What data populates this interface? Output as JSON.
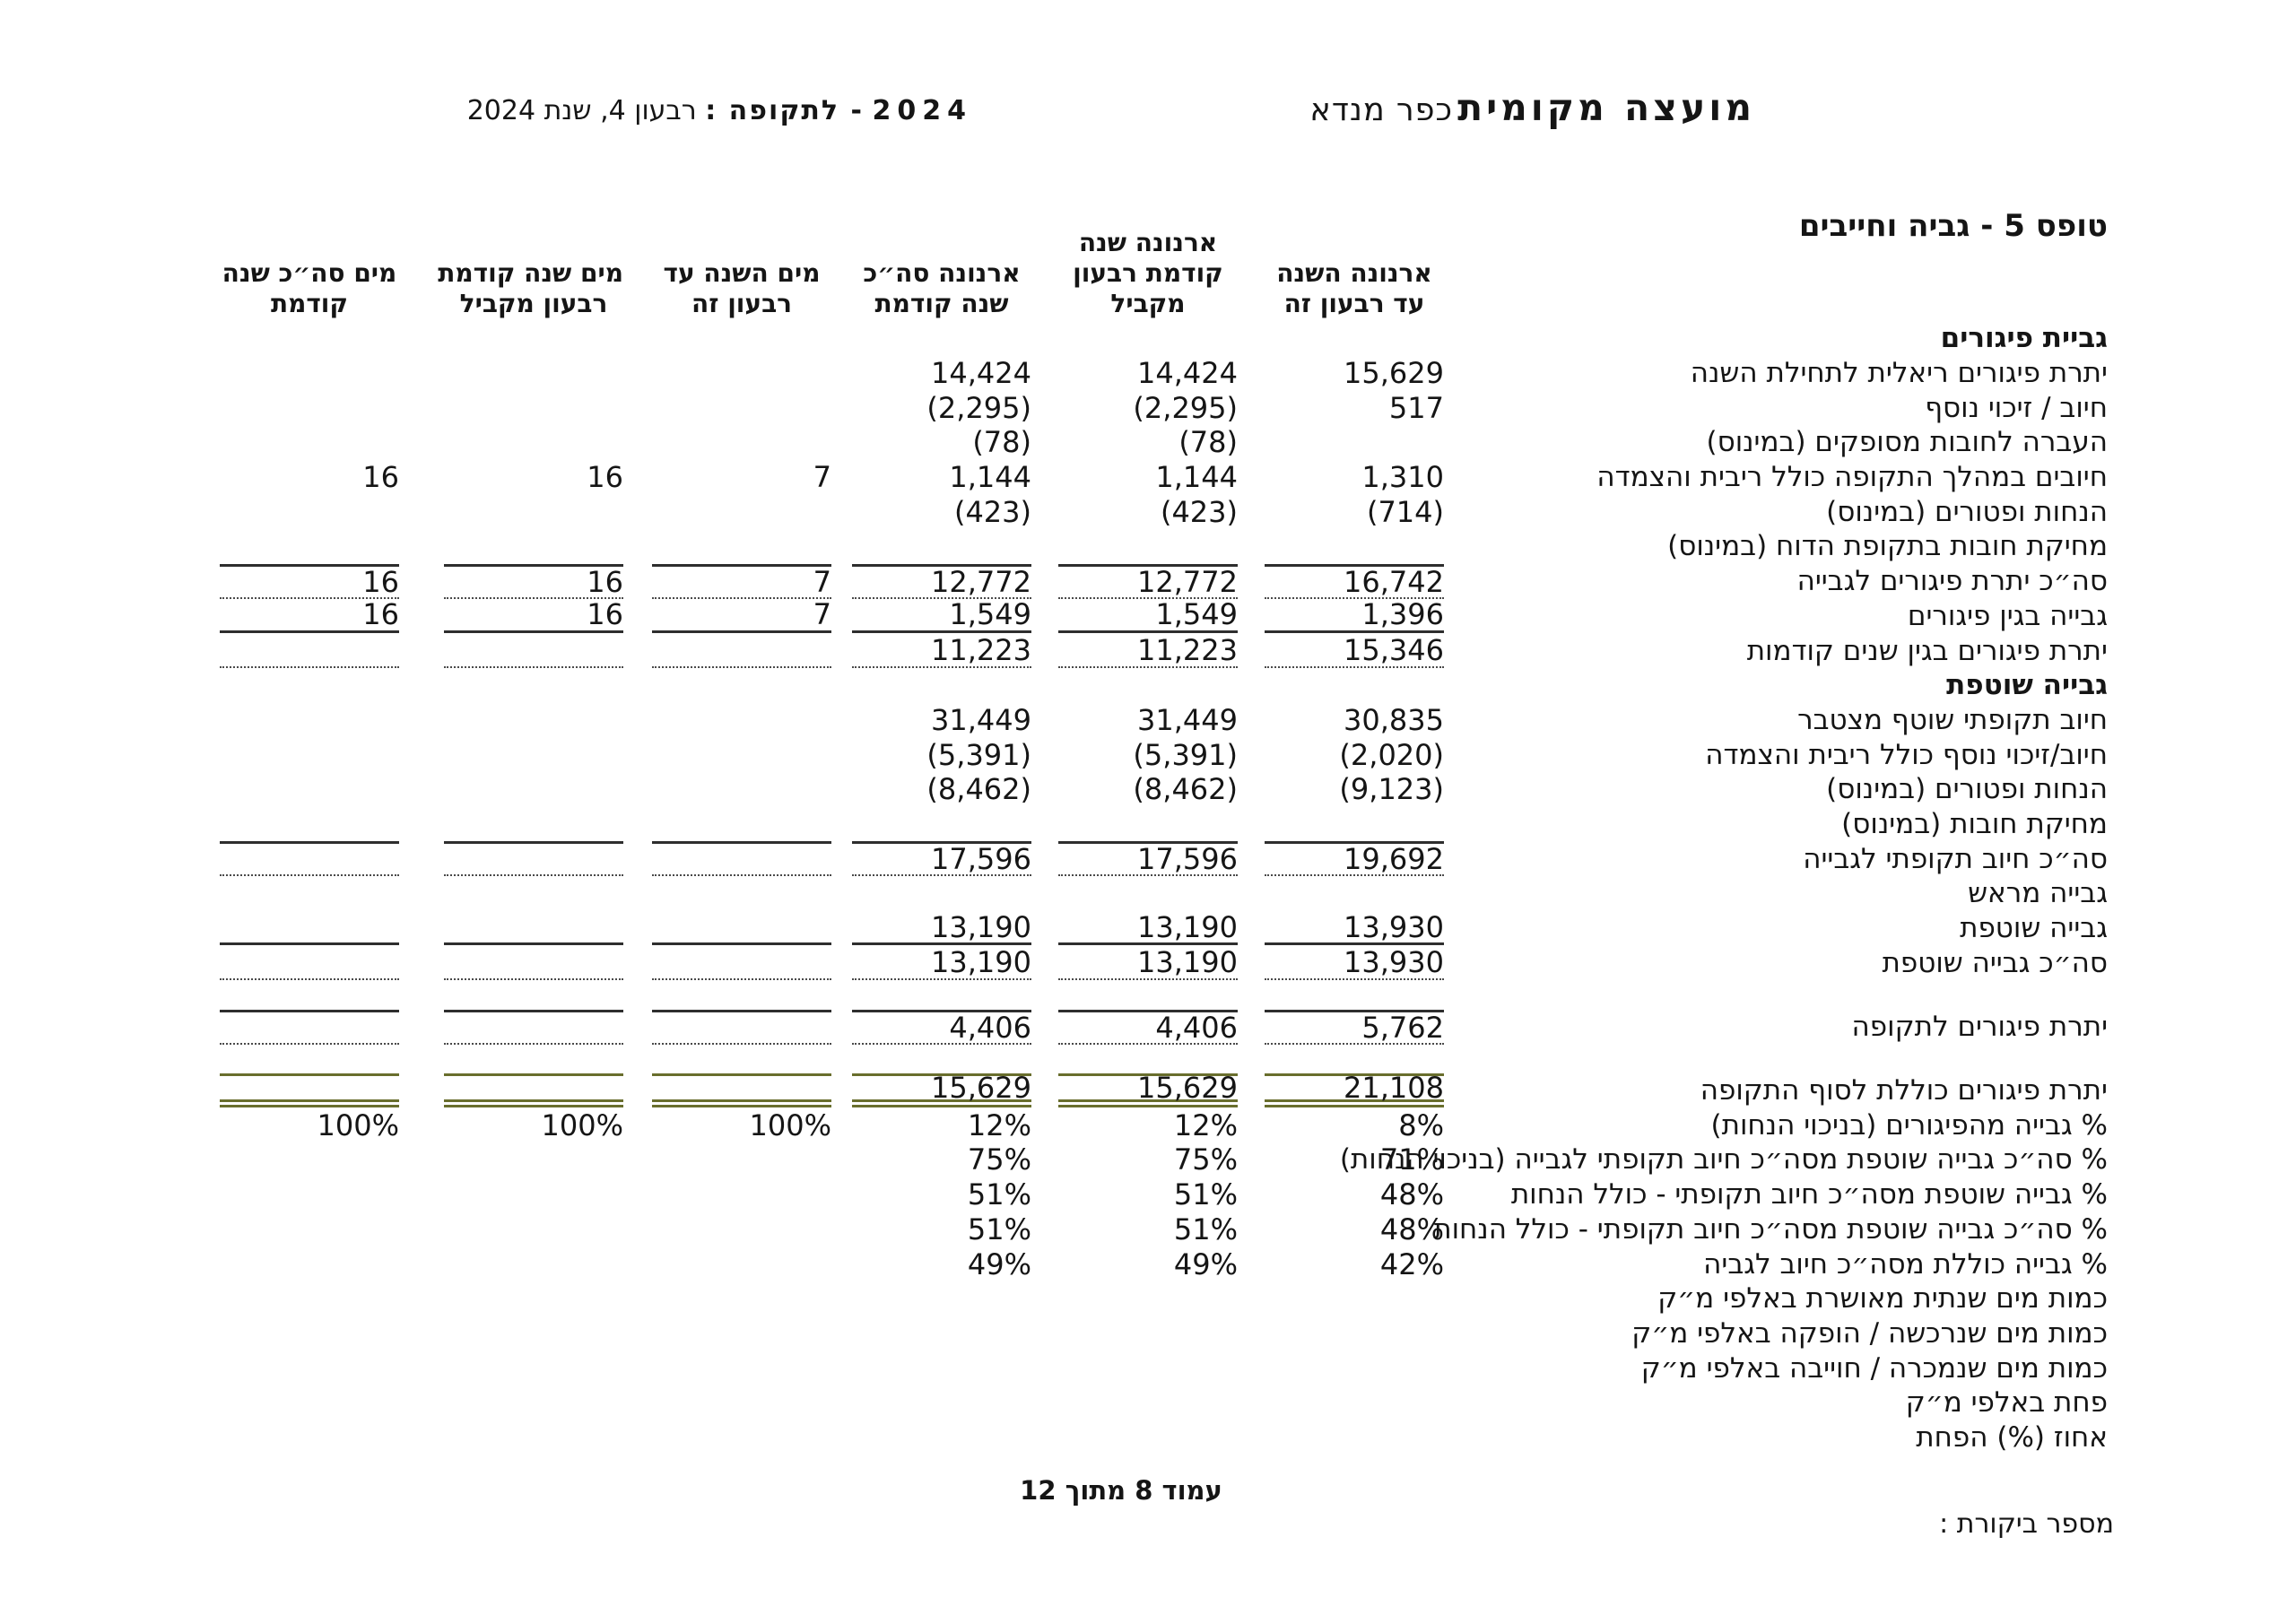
{
  "header": {
    "council_bold": "מועצה מקומית",
    "council_regular": "כפר מנדא",
    "period_year": "2024",
    "period_label": "- לתקופה :",
    "period_value": "רבעון 4, שנת 2024"
  },
  "form_title": "טופס 5 - גביה וחייבים",
  "footer": {
    "page_label": "עמוד 8 מתוך 12",
    "audit_label": "מספר ביקורת :"
  },
  "colors": {
    "text": "#151515",
    "rule": "#2e2e2e",
    "olive": "#696e2d"
  },
  "table": {
    "column_headers": [
      {
        "lines": [
          "ארנונה השנה",
          "עד רבעון זה"
        ]
      },
      {
        "lines": [
          "ארנונה שנה",
          "קודמת רבעון",
          "מקביל"
        ]
      },
      {
        "lines": [
          "ארנונה סה״כ",
          "שנה קודמת"
        ]
      },
      {
        "lines": [
          "מים השנה עד",
          "רבעון זה"
        ]
      },
      {
        "lines": [
          "מים שנה קודמת",
          "רבעון מקביל"
        ]
      },
      {
        "lines": [
          "מים סה״כ שנה",
          "קודמת"
        ]
      }
    ],
    "rows": [
      {
        "label": "גביית פיגורים",
        "bold": true,
        "values": [
          "",
          "",
          "",
          "",
          "",
          ""
        ]
      },
      {
        "label": "יתרת פיגורים ריאלית לתחילת השנה",
        "values": [
          "15,629",
          "14,424",
          "14,424",
          "",
          "",
          ""
        ]
      },
      {
        "label": "חיוב / זיכוי נוסף",
        "values": [
          "517",
          "(2,295)",
          "(2,295)",
          "",
          "",
          ""
        ]
      },
      {
        "label": "העברה לחובות מסופקים (במינוס)",
        "values": [
          "",
          "(78)",
          "(78)",
          "",
          "",
          ""
        ]
      },
      {
        "label": "חיובים במהלך התקופה כולל ריבית והצמדה",
        "values": [
          "1,310",
          "1,144",
          "1,144",
          "7",
          "16",
          "16"
        ]
      },
      {
        "label": "הנחות ופטורים (במינוס)",
        "values": [
          "(714)",
          "(423)",
          "(423)",
          "",
          "",
          ""
        ]
      },
      {
        "label": "מחיקת חובות בתקופת הדוח (במינוס)",
        "values": [
          "",
          "",
          "",
          "",
          "",
          ""
        ]
      },
      {
        "label": "סה״כ יתרת פיגורים לגבייה",
        "values": [
          "16,742",
          "12,772",
          "12,772",
          "7",
          "16",
          "16"
        ],
        "top": "solid",
        "bottom": "dotted"
      },
      {
        "label": "גבייה בגין פיגורים",
        "values": [
          "1,396",
          "1,549",
          "1,549",
          "7",
          "16",
          "16"
        ],
        "bottom": "solid"
      },
      {
        "label": "יתרת פיגורים בגין שנים קודמות",
        "values": [
          "15,346",
          "11,223",
          "11,223",
          "",
          "",
          ""
        ],
        "bottom": "dotted"
      },
      {
        "label": "גבייה שוטפת",
        "bold": true,
        "values": [
          "",
          "",
          "",
          "",
          "",
          ""
        ]
      },
      {
        "label": "חיוב תקופתי שוטף מצטבר",
        "values": [
          "30,835",
          "31,449",
          "31,449",
          "",
          "",
          ""
        ]
      },
      {
        "label": "חיוב/זיכוי נוסף כולל ריבית והצמדה",
        "values": [
          "(2,020)",
          "(5,391)",
          "(5,391)",
          "",
          "",
          ""
        ]
      },
      {
        "label": "הנחות ופטורים (במינוס)",
        "values": [
          "(9,123)",
          "(8,462)",
          "(8,462)",
          "",
          "",
          ""
        ]
      },
      {
        "label": "מחיקת חובות (במינוס)",
        "values": [
          "",
          "",
          "",
          "",
          "",
          ""
        ]
      },
      {
        "label": "סה״כ חיוב תקופתי לגבייה",
        "values": [
          "19,692",
          "17,596",
          "17,596",
          "",
          "",
          ""
        ],
        "top": "solid",
        "bottom": "dotted"
      },
      {
        "label": "גבייה מראש",
        "values": [
          "",
          "",
          "",
          "",
          "",
          ""
        ]
      },
      {
        "label": "גבייה שוטפת",
        "values": [
          "13,930",
          "13,190",
          "13,190",
          "",
          "",
          ""
        ],
        "bottom": "solid"
      },
      {
        "label": "סה״כ גבייה שוטפת",
        "values": [
          "13,930",
          "13,190",
          "13,190",
          "",
          "",
          ""
        ],
        "bottom": "dotted"
      },
      {
        "spacer": true,
        "h": 33
      },
      {
        "label": "יתרת פיגורים לתקופה",
        "values": [
          "5,762",
          "4,406",
          "4,406",
          "",
          "",
          ""
        ],
        "top": "solid",
        "bottom": "dotted"
      },
      {
        "spacer": true,
        "h": 32
      },
      {
        "label": "יתרת פיגורים כוללת לסוף התקופה",
        "values": [
          "21,108",
          "15,629",
          "15,629",
          "",
          "",
          ""
        ],
        "top": "olive",
        "bottom": "olive_double"
      },
      {
        "label": "% גבייה מהפיגורים (בניכוי הנחות)",
        "values": [
          "8%",
          "12%",
          "12%",
          "100%",
          "100%",
          "100%"
        ]
      },
      {
        "label": "% סה״כ גבייה שוטפת מסה״כ חיוב תקופתי לגבייה (בניכוי הנחות)",
        "values": [
          "71%",
          "75%",
          "75%",
          "",
          "",
          ""
        ]
      },
      {
        "label": "% גבייה שוטפת מסה״כ חיוב תקופתי - כולל הנחות",
        "values": [
          "48%",
          "51%",
          "51%",
          "",
          "",
          ""
        ]
      },
      {
        "label": "% סה״כ גבייה שוטפת מסה״כ חיוב תקופתי - כולל הנחות",
        "values": [
          "48%",
          "51%",
          "51%",
          "",
          "",
          ""
        ]
      },
      {
        "label": "% גבייה כוללת מסה״כ חיוב לגביה",
        "values": [
          "42%",
          "49%",
          "49%",
          "",
          "",
          ""
        ]
      },
      {
        "label": "כמות מים שנתית מאושרת באלפי מ״ק",
        "values": [
          "",
          "",
          "",
          "",
          "",
          ""
        ]
      },
      {
        "label": "כמות מים שנרכשה / הופקה באלפי מ״ק",
        "values": [
          "",
          "",
          "",
          "",
          "",
          ""
        ]
      },
      {
        "label": "כמות מים שנמכרה / חוייבה באלפי מ״ק",
        "values": [
          "",
          "",
          "",
          "",
          "",
          ""
        ]
      },
      {
        "label": "פחת באלפי מ״ק",
        "values": [
          "",
          "",
          "",
          "",
          "",
          ""
        ]
      },
      {
        "label": "אחוז (%) הפחת",
        "values": [
          "",
          "",
          "",
          "",
          "",
          ""
        ]
      }
    ]
  }
}
